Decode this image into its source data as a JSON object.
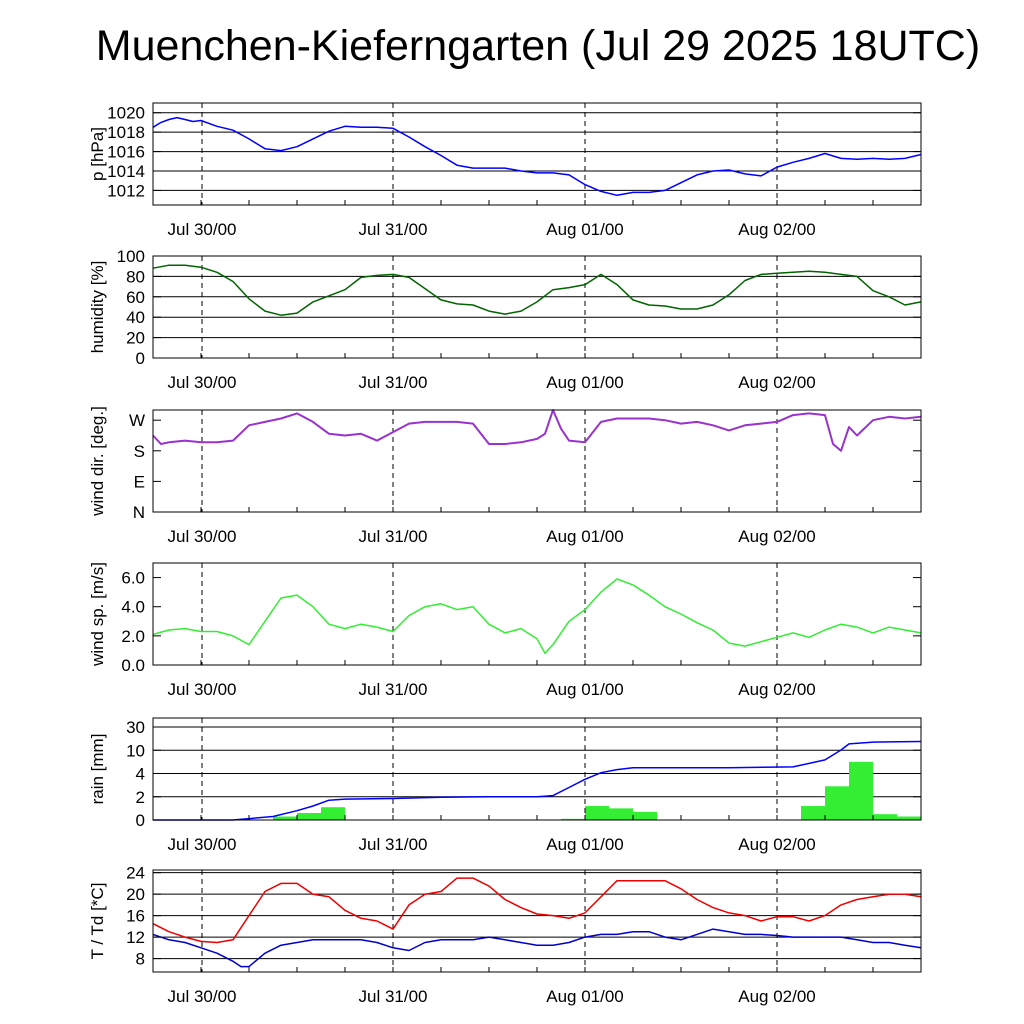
{
  "page": {
    "title": "Muenchen-Kieferngarten (Jul 29 2025 18UTC)"
  },
  "chart_data": [
    {
      "id": "pressure",
      "type": "line",
      "ylabel": "p [hPa]",
      "x_unit": "hours since Jul 29 18UTC",
      "xlim": [
        0,
        96
      ],
      "ylim": [
        1010.5,
        1021
      ],
      "yticks": [
        1012,
        1014,
        1016,
        1018,
        1020
      ],
      "ytick_labels": [
        "1012",
        "1014",
        "1016",
        "1018",
        "1020"
      ],
      "xtick_labels": [
        "Jul 30/00",
        "Jul 31/00",
        "Aug 01/00",
        "Aug 02/00"
      ],
      "grid": true,
      "series": [
        {
          "color": "#0000ff",
          "x": [
            0,
            1,
            2,
            3,
            4,
            5,
            6,
            8,
            10,
            12,
            14,
            16,
            18,
            20,
            22,
            24,
            26,
            28,
            30,
            32,
            34,
            36,
            38,
            40,
            42,
            44,
            46,
            48,
            50,
            52,
            54,
            56,
            58,
            60,
            62,
            64,
            66,
            68,
            70,
            72,
            74,
            76,
            78,
            80,
            82,
            84,
            86,
            88,
            90,
            92,
            94,
            96
          ],
          "y": [
            1018.5,
            1019.0,
            1019.3,
            1019.5,
            1019.3,
            1019.1,
            1019.2,
            1018.6,
            1018.2,
            1017.3,
            1016.3,
            1016.1,
            1016.5,
            1017.3,
            1018.1,
            1018.6,
            1018.5,
            1018.5,
            1018.4,
            1017.5,
            1016.5,
            1015.6,
            1014.6,
            1014.3,
            1014.3,
            1014.3,
            1014.0,
            1013.8,
            1013.8,
            1013.6,
            1012.6,
            1011.9,
            1011.5,
            1011.8,
            1011.8,
            1012.0,
            1012.8,
            1013.6,
            1014.0,
            1014.1,
            1013.7,
            1013.5,
            1014.4,
            1014.9,
            1015.3,
            1015.8,
            1015.3,
            1015.2,
            1015.3,
            1015.2,
            1015.3,
            1015.7
          ]
        }
      ]
    },
    {
      "id": "humidity",
      "type": "line",
      "ylabel": "humidity [%]",
      "xlim": [
        0,
        96
      ],
      "ylim": [
        0,
        100
      ],
      "yticks": [
        0,
        20,
        40,
        60,
        80,
        100
      ],
      "ytick_labels": [
        "0",
        "20",
        "40",
        "60",
        "80",
        "100"
      ],
      "xtick_labels": [
        "Jul 30/00",
        "Jul 31/00",
        "Aug 01/00",
        "Aug 02/00"
      ],
      "grid": true,
      "series": [
        {
          "color": "#006400",
          "x": [
            0,
            2,
            4,
            6,
            8,
            10,
            12,
            14,
            16,
            18,
            20,
            22,
            24,
            26,
            28,
            30,
            32,
            34,
            36,
            38,
            40,
            42,
            44,
            46,
            48,
            50,
            52,
            54,
            56,
            58,
            60,
            62,
            64,
            66,
            68,
            70,
            72,
            74,
            76,
            78,
            80,
            82,
            84,
            86,
            88,
            90,
            92,
            94,
            96
          ],
          "y": [
            88,
            91,
            91,
            89,
            84,
            75,
            58,
            46,
            42,
            44,
            55,
            61,
            67,
            79,
            81,
            82,
            79,
            68,
            57,
            53,
            52,
            46,
            43,
            46,
            55,
            67,
            69,
            72,
            82,
            72,
            57,
            52,
            51,
            48,
            48,
            52,
            62,
            76,
            82,
            83,
            84,
            85,
            84,
            82,
            80,
            66,
            60,
            52,
            55
          ]
        }
      ]
    },
    {
      "id": "wind_direction",
      "type": "line",
      "ylabel": "wind dir. [deg.]",
      "xlim": [
        0,
        96
      ],
      "ylim": [
        0,
        300
      ],
      "yticks": [
        0,
        90,
        180,
        270
      ],
      "ytick_labels": [
        "N",
        "E",
        "S",
        "W"
      ],
      "xtick_labels": [
        "Jul 30/00",
        "Jul 31/00",
        "Aug 01/00",
        "Aug 02/00"
      ],
      "grid": false,
      "series": [
        {
          "color": "#9a32cd",
          "x": [
            0,
            1,
            2,
            4,
            6,
            8,
            10,
            12,
            14,
            16,
            18,
            20,
            22,
            24,
            26,
            28,
            30,
            32,
            34,
            36,
            38,
            40,
            42,
            44,
            46,
            48,
            49,
            50,
            51,
            52,
            54,
            56,
            58,
            60,
            62,
            64,
            66,
            68,
            70,
            72,
            74,
            76,
            78,
            80,
            82,
            84,
            85,
            86,
            87,
            88,
            90,
            92,
            94,
            96
          ],
          "y": [
            225,
            200,
            205,
            210,
            205,
            205,
            210,
            255,
            265,
            275,
            290,
            265,
            230,
            225,
            230,
            210,
            235,
            260,
            265,
            265,
            265,
            260,
            200,
            200,
            205,
            215,
            230,
            300,
            245,
            210,
            205,
            265,
            275,
            275,
            275,
            270,
            260,
            265,
            255,
            240,
            255,
            260,
            265,
            285,
            290,
            285,
            200,
            180,
            250,
            225,
            270,
            280,
            275,
            280
          ]
        }
      ]
    },
    {
      "id": "wind_speed",
      "type": "line",
      "ylabel": "wind sp. [m/s]",
      "xlim": [
        0,
        96
      ],
      "ylim": [
        0,
        7
      ],
      "yticks": [
        0,
        2,
        4,
        6
      ],
      "ytick_labels": [
        "0.0",
        "2.0",
        "4.0",
        "6.0"
      ],
      "xtick_labels": [
        "Jul 30/00",
        "Jul 31/00",
        "Aug 01/00",
        "Aug 02/00"
      ],
      "grid": false,
      "series": [
        {
          "color": "#32ee32",
          "x": [
            0,
            2,
            4,
            6,
            8,
            10,
            12,
            14,
            16,
            18,
            20,
            22,
            24,
            26,
            28,
            30,
            32,
            34,
            36,
            38,
            40,
            42,
            44,
            46,
            48,
            49,
            50,
            52,
            54,
            56,
            58,
            60,
            62,
            64,
            66,
            68,
            70,
            72,
            74,
            76,
            78,
            80,
            82,
            84,
            86,
            88,
            90,
            92,
            94,
            96
          ],
          "y": [
            2.1,
            2.4,
            2.5,
            2.3,
            2.3,
            2.0,
            1.4,
            3.0,
            4.6,
            4.8,
            4.0,
            2.8,
            2.5,
            2.8,
            2.6,
            2.3,
            3.4,
            4.0,
            4.2,
            3.8,
            4.0,
            2.8,
            2.2,
            2.5,
            1.8,
            0.8,
            1.4,
            3.0,
            3.8,
            5.0,
            5.9,
            5.5,
            4.8,
            4.0,
            3.5,
            2.9,
            2.4,
            1.5,
            1.3,
            1.6,
            1.9,
            2.2,
            1.9,
            2.4,
            2.8,
            2.6,
            2.2,
            2.6,
            2.4,
            2.2
          ]
        }
      ]
    },
    {
      "id": "rain",
      "type": "bar",
      "ylabel": "rain [mm]",
      "xlim": [
        0,
        96
      ],
      "yticks": [
        0,
        2,
        4,
        10,
        30
      ],
      "ytick_labels": [
        "0",
        "2",
        "4",
        "10",
        "30"
      ],
      "xtick_labels": [
        "Jul 30/00",
        "Jul 31/00",
        "Aug 01/00",
        "Aug 02/00"
      ],
      "grid": true,
      "bars": {
        "color": "#33ee33",
        "bin_start_hours": [
          15,
          18,
          21,
          51,
          54,
          57,
          60,
          81,
          84,
          87,
          90,
          93
        ],
        "values": [
          0.3,
          0.6,
          1.1,
          0.1,
          1.2,
          1.0,
          0.7,
          1.2,
          2.9,
          7.0,
          0.5,
          0.3
        ]
      },
      "series": [
        {
          "name": "accumulated",
          "color": "#0000ff",
          "x": [
            0,
            10,
            15,
            18,
            20,
            22,
            24,
            30,
            36,
            42,
            48,
            50,
            52,
            54,
            56,
            58,
            60,
            66,
            72,
            80,
            84,
            86,
            87,
            90,
            96
          ],
          "y": [
            0,
            0,
            0.3,
            0.8,
            1.2,
            1.7,
            1.8,
            1.85,
            1.95,
            2.0,
            2.0,
            2.1,
            2.8,
            3.5,
            4.2,
            5.0,
            5.5,
            5.5,
            5.5,
            5.7,
            7.5,
            10.2,
            15.5,
            17.0,
            17.5
          ]
        }
      ]
    },
    {
      "id": "temperature",
      "type": "line",
      "ylabel": "T / Td [*C]",
      "xlim": [
        0,
        96
      ],
      "ylim": [
        5.5,
        24.5
      ],
      "yticks": [
        8,
        12,
        16,
        20,
        24
      ],
      "ytick_labels": [
        "8",
        "12",
        "16",
        "20",
        "24"
      ],
      "xtick_labels": [
        "Jul 30/00",
        "Jul 31/00",
        "Aug 01/00",
        "Aug 02/00"
      ],
      "grid": true,
      "series": [
        {
          "color": "#ee0000",
          "x": [
            0,
            2,
            4,
            6,
            8,
            10,
            12,
            14,
            16,
            18,
            20,
            22,
            24,
            26,
            28,
            30,
            32,
            34,
            36,
            38,
            40,
            42,
            44,
            46,
            48,
            50,
            52,
            54,
            56,
            58,
            60,
            62,
            64,
            66,
            68,
            70,
            72,
            74,
            76,
            78,
            80,
            82,
            84,
            86,
            88,
            90,
            92,
            94,
            96
          ],
          "y": [
            14.5,
            13,
            12,
            11.2,
            11,
            11.5,
            16,
            20.5,
            22,
            22,
            20,
            19.5,
            17,
            15.5,
            15,
            13.5,
            18,
            20,
            20.5,
            23,
            23,
            21.5,
            19,
            17.5,
            16.3,
            16,
            15.5,
            16.5,
            19.5,
            22.5,
            22.5,
            22.5,
            22.5,
            21,
            19,
            17.5,
            16.5,
            16,
            15,
            15.8,
            15.8,
            15,
            16,
            18,
            19,
            19.5,
            20,
            20,
            19.5
          ]
        },
        {
          "color": "#0000cd",
          "x": [
            0,
            2,
            4,
            6,
            8,
            10,
            11,
            12,
            14,
            16,
            18,
            20,
            22,
            24,
            26,
            28,
            30,
            32,
            34,
            36,
            38,
            40,
            42,
            44,
            46,
            48,
            50,
            52,
            54,
            56,
            58,
            60,
            62,
            64,
            66,
            68,
            70,
            72,
            74,
            76,
            78,
            80,
            82,
            84,
            86,
            88,
            90,
            92,
            94,
            96
          ],
          "y": [
            12.5,
            11.5,
            11,
            10,
            9,
            7.5,
            6.5,
            6.5,
            9,
            10.5,
            11,
            11.5,
            11.5,
            11.5,
            11.5,
            11,
            10,
            9.5,
            11,
            11.5,
            11.5,
            11.5,
            12,
            11.5,
            11,
            10.5,
            10.5,
            11,
            12,
            12.5,
            12.5,
            13,
            13,
            12,
            11.5,
            12.5,
            13.5,
            13,
            12.5,
            12.5,
            12.3,
            12,
            12,
            12,
            12,
            11.5,
            11,
            11,
            10.5,
            10
          ]
        }
      ]
    }
  ]
}
